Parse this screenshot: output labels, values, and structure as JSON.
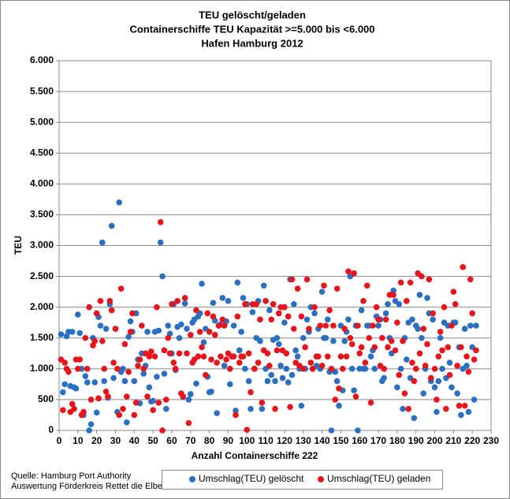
{
  "chart_data": {
    "type": "scatter",
    "title": [
      "TEU gelöscht/geladen",
      "Containerschiffe TEU Kapazität >=5.000 bis <6.000",
      "Hafen Hamburg 2012"
    ],
    "xlabel": "Anzahl Containerschiffe 222",
    "ylabel": "TEU",
    "source": [
      "Quelle: Hamburg Port Authority",
      "Auswertung Förderkreis Rettet die Elbe"
    ],
    "legend": "bottom",
    "grid": true,
    "xlim": [
      0,
      230
    ],
    "xticks": [
      0,
      10,
      20,
      30,
      40,
      50,
      60,
      70,
      80,
      90,
      100,
      110,
      120,
      130,
      140,
      150,
      160,
      170,
      180,
      190,
      200,
      210,
      220,
      230
    ],
    "ylim": [
      0,
      6000
    ],
    "yticks": [
      0,
      500,
      {
        "value": 1000,
        "label": "1.000"
      },
      {
        "value": 1500,
        "label": "1.500"
      },
      {
        "value": 2000,
        "label": "2.000"
      },
      {
        "value": 2500,
        "label": "2.500"
      },
      {
        "value": 3000,
        "label": "3.000"
      },
      {
        "value": 3500,
        "label": "3.500"
      },
      {
        "value": 4000,
        "label": "4.000"
      },
      {
        "value": 4500,
        "label": "4.500"
      },
      {
        "value": 5000,
        "label": "5.000"
      },
      {
        "value": 5500,
        "label": "5.500"
      },
      {
        "value": 6000,
        "label": "6.000"
      }
    ],
    "x": [
      1,
      2,
      3,
      4,
      5,
      6,
      7,
      8,
      9,
      10,
      11,
      12,
      13,
      14,
      15,
      16,
      17,
      18,
      19,
      20,
      21,
      22,
      23,
      24,
      25,
      26,
      27,
      28,
      29,
      30,
      31,
      32,
      33,
      34,
      35,
      36,
      37,
      38,
      39,
      40,
      41,
      42,
      43,
      44,
      45,
      46,
      47,
      48,
      49,
      50,
      51,
      52,
      53,
      54,
      55,
      56,
      57,
      58,
      59,
      60,
      61,
      62,
      63,
      64,
      65,
      66,
      67,
      68,
      69,
      70,
      71,
      72,
      73,
      74,
      75,
      76,
      77,
      78,
      79,
      80,
      81,
      82,
      83,
      84,
      85,
      86,
      87,
      88,
      89,
      90,
      91,
      92,
      93,
      94,
      95,
      96,
      97,
      98,
      99,
      100,
      101,
      102,
      103,
      104,
      105,
      106,
      107,
      108,
      109,
      110,
      111,
      112,
      113,
      114,
      115,
      116,
      117,
      118,
      119,
      120,
      121,
      122,
      123,
      124,
      125,
      126,
      127,
      128,
      129,
      130,
      131,
      132,
      133,
      134,
      135,
      136,
      137,
      138,
      139,
      140,
      141,
      142,
      143,
      144,
      145,
      146,
      147,
      148,
      149,
      150,
      151,
      152,
      153,
      154,
      155,
      156,
      157,
      158,
      159,
      160,
      161,
      162,
      163,
      164,
      165,
      166,
      167,
      168,
      169,
      170,
      171,
      172,
      173,
      174,
      175,
      176,
      177,
      178,
      179,
      180,
      181,
      182,
      183,
      184,
      185,
      186,
      187,
      188,
      189,
      190,
      191,
      192,
      193,
      194,
      195,
      196,
      197,
      198,
      199,
      200,
      201,
      202,
      203,
      204,
      205,
      206,
      207,
      208,
      209,
      210,
      211,
      212,
      213,
      214,
      215,
      216,
      217,
      218,
      219,
      220,
      221,
      222
    ],
    "series": [
      {
        "name": "Umschlag(TEU) gelöscht",
        "color": "#2a6fc2",
        "values": [
          1560,
          620,
          750,
          1530,
          1600,
          720,
          1600,
          700,
          680,
          1880,
          1580,
          1000,
          250,
          880,
          780,
          0,
          100,
          1500,
          780,
          290,
          1840,
          1700,
          3050,
          800,
          1650,
          530,
          2050,
          3320,
          850,
          1650,
          300,
          3700,
          950,
          1000,
          800,
          130,
          1520,
          1770,
          1600,
          800,
          1900,
          1150,
          440,
          1250,
          920,
          1050,
          1600,
          700,
          470,
          480,
          1600,
          870,
          1620,
          3050,
          2500,
          920,
          350,
          1700,
          1570,
          1250,
          2050,
          980,
          1680,
          1500,
          1720,
          540,
          2060,
          1650,
          500,
          590,
          1750,
          1800,
          760,
          1850,
          1900,
          2380,
          1430,
          1650,
          870,
          620,
          630,
          2070,
          1780,
          280,
          1700,
          1720,
          2150,
          1050,
          1770,
          2100,
          750,
          1200,
          1700,
          320,
          2400,
          1300,
          1600,
          2150,
          1000,
          2050,
          800,
          350,
          1920,
          1000,
          1500,
          2100,
          1450,
          350,
          2350,
          1000,
          800,
          1950,
          900,
          1470,
          800,
          1500,
          1400,
          1050,
          850,
          1750,
          1000,
          780,
          2450,
          900,
          2050,
          1300,
          1200,
          1000,
          400,
          1500,
          1000,
          1800,
          1600,
          2000,
          1000,
          1900,
          1050,
          1650,
          1000,
          2250,
          1500,
          1500,
          1800,
          950,
          0,
          1450,
          950,
          800,
          400,
          1700,
          650,
          1450,
          1600,
          1800,
          2500,
          1000,
          650,
          1700,
          0,
          1000,
          1950,
          1000,
          1000,
          1700,
          1700,
          1200,
          1300,
          1000,
          1850,
          1700,
          1800,
          800,
          850,
          1900,
          2050,
          1500,
          1250,
          2270,
          2100,
          700,
          2050,
          1000,
          350,
          1500,
          1150,
          1750,
          850,
          1800,
          200,
          1700,
          1650,
          2200,
          1500,
          600,
          1000,
          2150,
          1900,
          800,
          1800,
          700,
          300,
          800,
          1500,
          1000,
          1750,
          850,
          1700,
          1100,
          700,
          1750,
          1750,
          600,
          1350,
          250,
          1000,
          1650,
          1050,
          300,
          1700,
          1350,
          500,
          1700
        ]
      },
      {
        "name": "Umschlag(TEU) geladen",
        "color": "#e8141c",
        "values": [
          1150,
          330,
          1100,
          1000,
          950,
          300,
          430,
          350,
          1150,
          1000,
          1150,
          250,
          300,
          1500,
          1000,
          2000,
          500,
          1380,
          1450,
          1900,
          520,
          2100,
          1450,
          1000,
          630,
          550,
          2100,
          1950,
          1100,
          1650,
          1000,
          250,
          2300,
          350,
          1400,
          550,
          950,
          1600,
          1900,
          250,
          450,
          1050,
          1150,
          1700,
          1000,
          1250,
          550,
          1200,
          1280,
          330,
          1200,
          2000,
          450,
          3380,
          0,
          1300,
          500,
          1500,
          1250,
          2050,
          1100,
          1000,
          2100,
          1250,
          600,
          550,
          2150,
          1250,
          120,
          1550,
          1100,
          1150,
          1950,
          1200,
          1600,
          1350,
          1200,
          900,
          1900,
          1600,
          1150,
          1850,
          1550,
          1100,
          1700,
          1200,
          1800,
          1700,
          1150,
          1250,
          1000,
          1200,
          1200,
          250,
          1850,
          1100,
          1200,
          1200,
          2050,
          10,
          1250,
          620,
          2050,
          1000,
          2050,
          1100,
          1800,
          450,
          1300,
          2100,
          1250,
          1050,
          1800,
          2050,
          350,
          1300,
          1900,
          2000,
          1300,
          2000,
          1250,
          1850,
          380,
          2450,
          1650,
          1100,
          2300,
          1050,
          1850,
          1000,
          1350,
          2450,
          1650,
          1100,
          1000,
          2000,
          1200,
          1200,
          1700,
          1050,
          2350,
          1700,
          1200,
          1950,
          1000,
          1700,
          500,
          2300,
          680,
          1200,
          1000,
          1650,
          1200,
          2580,
          1500,
          1400,
          2550,
          550,
          1700,
          1250,
          1350,
          2100,
          1100,
          2350,
          1500,
          450,
          1700,
          1350,
          2000,
          1800,
          1050,
          1500,
          1000,
          1800,
          1350,
          2200,
          1450,
          2200,
          1300,
          1750,
          900,
          2400,
          1450,
          600,
          2100,
          350,
          2400,
          1100,
          800,
          1000,
          2550,
          1250,
          2500,
          1650,
          1050,
          1400,
          2450,
          850,
          1900,
          1000,
          500,
          1200,
          1600,
          1300,
          2000,
          350,
          1350,
          900,
          1700,
          2250,
          2050,
          1050,
          400,
          1350,
          2650,
          400,
          1200,
          950,
          2450,
          1900,
          1150,
          1300
        ]
      }
    ]
  }
}
